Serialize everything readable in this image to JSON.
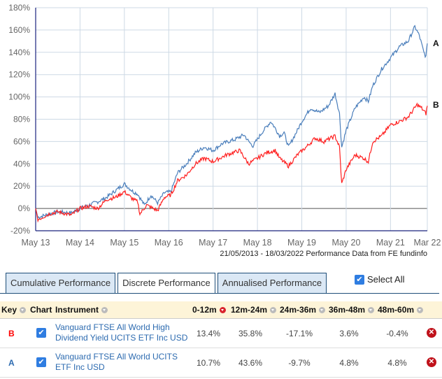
{
  "chart_data": {
    "type": "line",
    "ylim": [
      -20,
      180
    ],
    "yticks": [
      "180%",
      "160%",
      "140%",
      "120%",
      "100%",
      "80%",
      "60%",
      "40%",
      "20%",
      "0%",
      "-20%"
    ],
    "ytick_values": [
      180,
      160,
      140,
      120,
      100,
      80,
      60,
      40,
      20,
      0,
      -20
    ],
    "xticks": [
      "May 13",
      "May 14",
      "May 15",
      "May 16",
      "May 17",
      "May 18",
      "May 19",
      "May 20",
      "May 21",
      "Mar 22"
    ],
    "xtick_values": [
      0,
      1,
      2,
      3,
      4,
      5,
      6,
      7,
      8,
      8.83
    ],
    "xlim": [
      0,
      8.83
    ],
    "caption": "21/05/2013 - 18/03/2022 Performance Data from FE fundinfo",
    "series": [
      {
        "name": "A",
        "color": "#4a7ebb",
        "x": [
          0,
          0.05,
          0.3,
          0.5,
          0.8,
          1.0,
          1.2,
          1.4,
          1.6,
          1.8,
          2.0,
          2.2,
          2.3,
          2.45,
          2.6,
          2.75,
          2.9,
          3.05,
          3.2,
          3.4,
          3.6,
          3.8,
          4.0,
          4.2,
          4.5,
          4.7,
          4.8,
          4.9,
          5.1,
          5.3,
          5.4,
          5.5,
          5.6,
          5.7,
          5.9,
          6.0,
          6.2,
          6.4,
          6.6,
          6.75,
          6.85,
          6.9,
          7.0,
          7.2,
          7.4,
          7.5,
          7.6,
          7.8,
          8.0,
          8.2,
          8.4,
          8.55,
          8.65,
          8.75,
          8.8,
          8.83
        ],
        "y": [
          0,
          -8,
          -5,
          -3,
          -4,
          0,
          3,
          6,
          10,
          16,
          22,
          15,
          13,
          3,
          12,
          5,
          14,
          15,
          32,
          40,
          50,
          55,
          52,
          58,
          62,
          66,
          60,
          56,
          68,
          78,
          72,
          65,
          68,
          55,
          70,
          78,
          90,
          86,
          92,
          103,
          85,
          55,
          70,
          90,
          100,
          96,
          110,
          125,
          135,
          145,
          150,
          163,
          155,
          140,
          136,
          148
        ]
      },
      {
        "name": "B",
        "color": "#ff2020",
        "x": [
          0,
          0.05,
          0.3,
          0.5,
          0.8,
          1.0,
          1.2,
          1.4,
          1.6,
          1.8,
          2.0,
          2.2,
          2.3,
          2.35,
          2.5,
          2.75,
          2.9,
          3.05,
          3.2,
          3.4,
          3.6,
          3.8,
          4.0,
          4.3,
          4.6,
          4.8,
          5.0,
          5.2,
          5.4,
          5.5,
          5.7,
          5.9,
          6.1,
          6.3,
          6.5,
          6.75,
          6.85,
          6.9,
          7.0,
          7.2,
          7.4,
          7.5,
          7.6,
          7.8,
          8.0,
          8.2,
          8.4,
          8.6,
          8.7,
          8.8,
          8.83
        ],
        "y": [
          0,
          -10,
          -5,
          -3,
          -6,
          0,
          2,
          0,
          8,
          10,
          15,
          8,
          6,
          -5,
          3,
          -2,
          10,
          12,
          25,
          30,
          40,
          45,
          42,
          48,
          52,
          40,
          45,
          50,
          52,
          45,
          38,
          48,
          55,
          63,
          60,
          65,
          55,
          22,
          35,
          48,
          45,
          42,
          60,
          65,
          75,
          78,
          82,
          93,
          90,
          85,
          92
        ]
      }
    ]
  },
  "tabs": [
    "Cumulative Performance",
    "Discrete Performance",
    "Annualised Performance"
  ],
  "select_all": "Select All",
  "table": {
    "headers": [
      "Key",
      "Chart",
      "Instrument",
      "0-12m",
      "12m-24m",
      "24m-36m",
      "36m-48m",
      "48m-60m"
    ],
    "rows": [
      {
        "key": "B",
        "key_color": "#ff0000",
        "instrument": "Vanguard FTSE All World High Dividend Yield UCITS ETF Inc USD",
        "values": [
          "13.4%",
          "35.8%",
          "-17.1%",
          "3.6%",
          "-0.4%"
        ]
      },
      {
        "key": "A",
        "key_color": "#2d6bb0",
        "instrument": "Vanguard FTSE All World UCITS ETF Inc USD",
        "values": [
          "10.7%",
          "43.6%",
          "-9.7%",
          "4.8%",
          "4.8%"
        ]
      }
    ]
  }
}
